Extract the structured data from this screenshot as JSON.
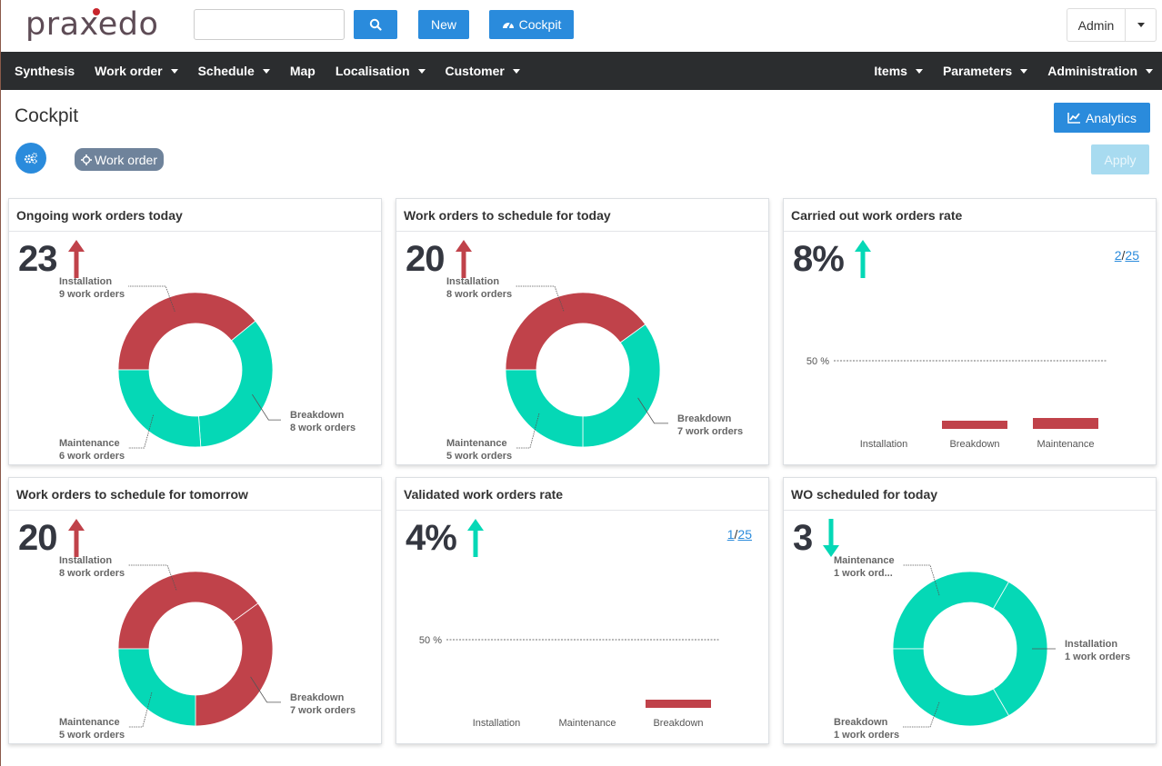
{
  "header": {
    "logo_text": "praxedo",
    "search": {
      "value": "",
      "placeholder": ""
    },
    "buttons": {
      "search_icon": "search-icon",
      "new": "New",
      "cockpit": "Cockpit"
    },
    "user": {
      "name": "Admin"
    }
  },
  "nav": {
    "left": [
      {
        "label": "Synthesis",
        "dropdown": false
      },
      {
        "label": "Work order",
        "dropdown": true
      },
      {
        "label": "Schedule",
        "dropdown": true
      },
      {
        "label": "Map",
        "dropdown": false
      },
      {
        "label": "Localisation",
        "dropdown": true
      },
      {
        "label": "Customer",
        "dropdown": true
      }
    ],
    "right": [
      {
        "label": "Items",
        "dropdown": true
      },
      {
        "label": "Parameters",
        "dropdown": true
      },
      {
        "label": "Administration",
        "dropdown": true
      }
    ]
  },
  "page": {
    "title": "Cockpit",
    "analytics_label": "Analytics",
    "filter_chip": "Work order",
    "apply_label": "Apply"
  },
  "colors": {
    "accent": "#2a8bdc",
    "red": "#c0424a",
    "teal": "#05d8b6",
    "nav_bg": "#2b2d2f"
  },
  "cards": [
    {
      "title": "Ongoing work orders today",
      "kpi": "23",
      "trend": "up",
      "trend_color": "#c0424a"
    },
    {
      "title": "Work orders to schedule for today",
      "kpi": "20",
      "trend": "up",
      "trend_color": "#c0424a"
    },
    {
      "title": "Carried out work orders rate",
      "kpi": "8%",
      "trend": "up",
      "trend_color": "#05d8b6",
      "pager": {
        "current": "2",
        "sep": "/",
        "total": "25"
      }
    },
    {
      "title": "Work orders to schedule for tomorrow",
      "kpi": "20",
      "trend": "up",
      "trend_color": "#c0424a"
    },
    {
      "title": "Validated work orders rate",
      "kpi": "4%",
      "trend": "up",
      "trend_color": "#05d8b6",
      "pager": {
        "current": "1",
        "sep": "/",
        "total": "25"
      }
    },
    {
      "title": "WO scheduled for today",
      "kpi": "3",
      "trend": "down",
      "trend_color": "#05d8b6"
    }
  ],
  "chart_data": [
    {
      "type": "pie",
      "title": "Ongoing work orders today",
      "donut": true,
      "slices": [
        {
          "label": "Installation",
          "value": 9,
          "detail": "9 work orders",
          "color": "#c0424a"
        },
        {
          "label": "Breakdown",
          "value": 8,
          "detail": "8 work orders",
          "color": "#05d8b6"
        },
        {
          "label": "Maintenance",
          "value": 6,
          "detail": "6 work orders",
          "color": "#05d8b6"
        }
      ]
    },
    {
      "type": "pie",
      "title": "Work orders to schedule for today",
      "donut": true,
      "slices": [
        {
          "label": "Installation",
          "value": 8,
          "detail": "8 work orders",
          "color": "#c0424a"
        },
        {
          "label": "Breakdown",
          "value": 7,
          "detail": "7 work orders",
          "color": "#05d8b6"
        },
        {
          "label": "Maintenance",
          "value": 5,
          "detail": "5 work orders",
          "color": "#05d8b6"
        }
      ]
    },
    {
      "type": "bar",
      "title": "Carried out work orders rate",
      "categories": [
        "Installation",
        "Breakdown",
        "Maintenance"
      ],
      "values": [
        0,
        6,
        8
      ],
      "reference_line": {
        "value": 50,
        "label": "50 %"
      },
      "ylim": [
        0,
        100
      ],
      "color": "#c0424a"
    },
    {
      "type": "pie",
      "title": "Work orders to schedule for tomorrow",
      "donut": true,
      "slices": [
        {
          "label": "Installation",
          "value": 8,
          "detail": "8 work orders",
          "color": "#c0424a"
        },
        {
          "label": "Breakdown",
          "value": 7,
          "detail": "7 work orders",
          "color": "#c0424a"
        },
        {
          "label": "Maintenance",
          "value": 5,
          "detail": "5 work orders",
          "color": "#05d8b6"
        }
      ]
    },
    {
      "type": "bar",
      "title": "Validated work orders rate",
      "categories": [
        "Installation",
        "Maintenance",
        "Breakdown"
      ],
      "values": [
        0,
        0,
        6
      ],
      "reference_line": {
        "value": 50,
        "label": "50 %"
      },
      "ylim": [
        0,
        100
      ],
      "color": "#c0424a"
    },
    {
      "type": "pie",
      "title": "WO scheduled for today",
      "donut": true,
      "slices": [
        {
          "label": "Maintenance",
          "value": 1,
          "detail": "1 work ord...",
          "color": "#05d8b6"
        },
        {
          "label": "Installation",
          "value": 1,
          "detail": "1 work orders",
          "color": "#05d8b6"
        },
        {
          "label": "Breakdown",
          "value": 1,
          "detail": "1 work orders",
          "color": "#05d8b6"
        }
      ]
    }
  ]
}
